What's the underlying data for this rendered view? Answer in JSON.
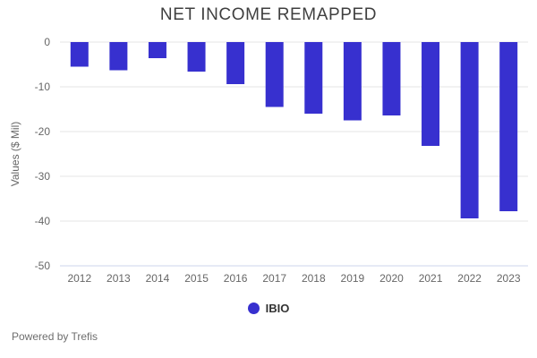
{
  "chart_data": {
    "type": "bar",
    "title": "NET INCOME REMAPPED",
    "xlabel": "",
    "ylabel": "Values ($ Mil)",
    "categories": [
      "2012",
      "2013",
      "2014",
      "2015",
      "2016",
      "2017",
      "2018",
      "2019",
      "2020",
      "2021",
      "2022",
      "2023"
    ],
    "series": [
      {
        "name": "IBIO",
        "color": "#3730cf",
        "values": [
          -5.5,
          -6.3,
          -3.6,
          -6.6,
          -9.4,
          -14.5,
          -16.0,
          -17.5,
          -16.4,
          -23.2,
          -39.4,
          -37.8
        ]
      }
    ],
    "ylim": [
      -50,
      0
    ],
    "yticks": [
      0,
      -10,
      -20,
      -30,
      -40,
      -50
    ],
    "grid": true,
    "legend_position": "bottom",
    "colors": {
      "grid_line": "#e6e6e6",
      "axis_line": "#ccd6eb",
      "axis_label": "#666666",
      "title_text": "#3f3f3f",
      "legend_text": "#333333",
      "footer_text": "#6e6e6e"
    }
  },
  "footer": {
    "text": "Powered by Trefis"
  }
}
